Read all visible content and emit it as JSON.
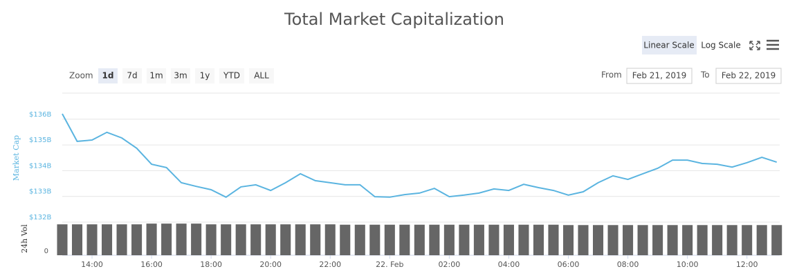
{
  "chart_data": {
    "type": "line",
    "title": "Total Market Capitalization",
    "scale_buttons": [
      "Linear Scale",
      "Log Scale"
    ],
    "zoom_label": "Zoom",
    "zoom_buttons": [
      "1d",
      "7d",
      "1m",
      "3m",
      "1y",
      "YTD",
      "ALL"
    ],
    "from_label": "From",
    "from_date": "Feb 21, 2019",
    "to_label": "To",
    "to_date": "Feb 22, 2019",
    "y_label": "Market Cap",
    "y2_label": "24h Vol",
    "x": [
      13,
      13.5,
      14,
      14.5,
      15,
      15.5,
      16,
      16.5,
      17,
      17.5,
      18,
      18.5,
      19,
      19.5,
      20,
      20.5,
      21,
      21.5,
      22,
      22.5,
      23,
      23.5,
      24,
      24.5,
      25,
      25.5,
      26,
      26.5,
      27,
      27.5,
      28,
      28.5,
      29,
      29.5,
      30,
      30.5,
      31,
      31.5,
      32,
      32.5,
      33,
      33.5,
      34,
      34.5,
      35,
      35.5,
      36,
      36.5,
      37
    ],
    "xlim": [
      13,
      37.1
    ],
    "xticks": [
      {
        "value": 14,
        "label": "14:00"
      },
      {
        "value": 16,
        "label": "16:00"
      },
      {
        "value": 18,
        "label": "18:00"
      },
      {
        "value": 20,
        "label": "20:00"
      },
      {
        "value": 22,
        "label": "22:00"
      },
      {
        "value": 24,
        "label": "22. Feb"
      },
      {
        "value": 26,
        "label": "02:00"
      },
      {
        "value": 28,
        "label": "04:00"
      },
      {
        "value": 30,
        "label": "06:00"
      },
      {
        "value": 32,
        "label": "08:00"
      },
      {
        "value": 34,
        "label": "10:00"
      },
      {
        "value": 36,
        "label": "12:00"
      }
    ],
    "ylim": [
      132,
      137
    ],
    "yticks": [
      {
        "value": 132,
        "label": "$132B"
      },
      {
        "value": 133,
        "label": "$133B"
      },
      {
        "value": 134,
        "label": "$134B"
      },
      {
        "value": 135,
        "label": "$135B"
      },
      {
        "value": 136,
        "label": "$136B"
      }
    ],
    "y2lim": [
      0,
      45
    ],
    "y2ticks": [
      0
    ],
    "grid": true,
    "series": [
      {
        "name": "Market Cap",
        "color": "#5ab4e0",
        "values": [
          136.21,
          135.14,
          135.19,
          135.49,
          135.27,
          134.87,
          134.25,
          134.12,
          133.53,
          133.39,
          133.26,
          132.97,
          133.37,
          133.45,
          133.23,
          133.53,
          133.88,
          133.61,
          133.53,
          133.45,
          133.45,
          132.99,
          132.97,
          133.07,
          133.13,
          133.31,
          132.99,
          133.05,
          133.13,
          133.29,
          133.23,
          133.47,
          133.34,
          133.23,
          133.05,
          133.18,
          133.53,
          133.8,
          133.66,
          133.88,
          134.09,
          134.41,
          134.41,
          134.28,
          134.25,
          134.14,
          134.31,
          134.52,
          134.33
        ]
      },
      {
        "name": "24h Vol",
        "type": "bar",
        "axis": "y2",
        "color": "#666666",
        "values": [
          42,
          42,
          42,
          42,
          42,
          42,
          43,
          43,
          43,
          43,
          42,
          42,
          42,
          42,
          42,
          42,
          42,
          42,
          42,
          41.5,
          41.5,
          41.5,
          41.5,
          41.5,
          41.5,
          41.5,
          41.5,
          41.5,
          41.5,
          41.5,
          41.5,
          41.5,
          41.5,
          41.5,
          41,
          41,
          41,
          41,
          41,
          41,
          41,
          41,
          41,
          41,
          41,
          41,
          41,
          41,
          41
        ]
      }
    ]
  }
}
